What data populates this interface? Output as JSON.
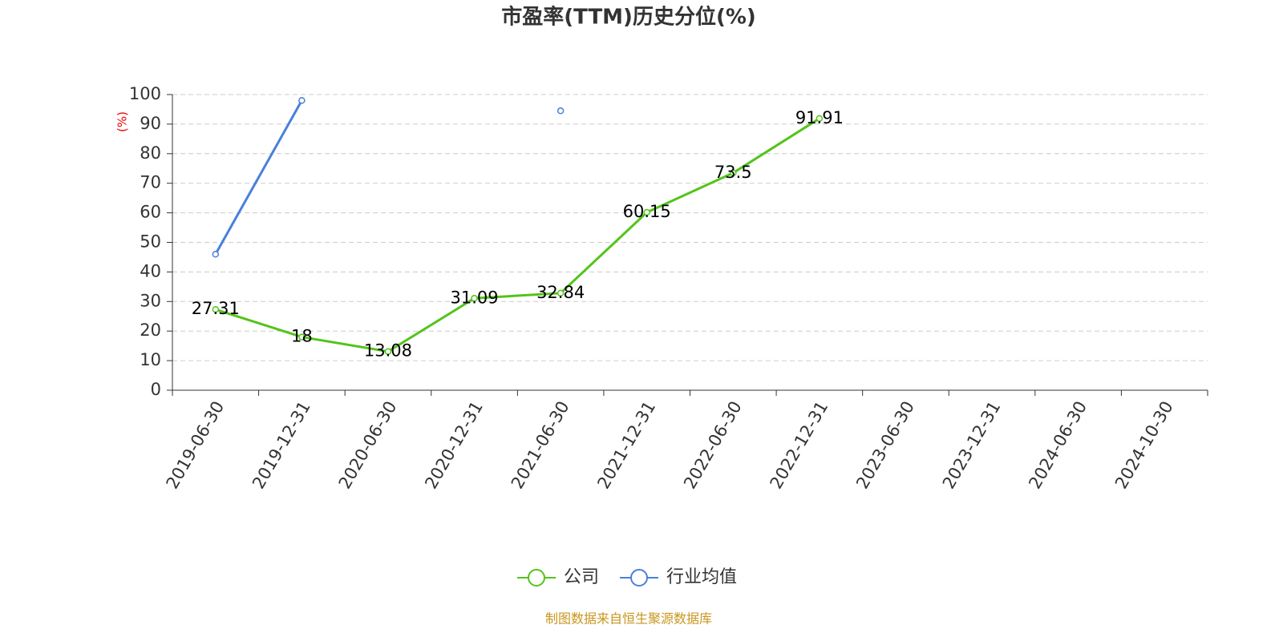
{
  "chart_data": {
    "type": "line",
    "title": "市盈率(TTM)历史分位(%)",
    "y_label": "(%)",
    "source": "制图数据来自恒生聚源数据库",
    "categories": [
      "2019-06-30",
      "2019-12-31",
      "2020-06-30",
      "2020-12-31",
      "2021-06-30",
      "2021-12-31",
      "2022-06-30",
      "2022-12-31",
      "2023-06-30",
      "2023-12-31",
      "2024-06-30",
      "2024-10-30"
    ],
    "series": [
      {
        "name": "公司",
        "color": "#52c41a",
        "values": [
          27.31,
          18,
          13.08,
          31.09,
          32.84,
          60.15,
          73.5,
          91.91,
          null,
          null,
          null,
          null
        ],
        "data_labels": true
      },
      {
        "name": "行业均值",
        "color": "#4a7fdc",
        "values": [
          46,
          98,
          null,
          null,
          94.5,
          null,
          null,
          null,
          null,
          null,
          null,
          null
        ],
        "data_labels": false
      }
    ],
    "ylim": [
      0,
      100
    ],
    "yticks": [
      0,
      10,
      20,
      30,
      40,
      50,
      60,
      70,
      80,
      90,
      100
    ],
    "grid": true
  }
}
